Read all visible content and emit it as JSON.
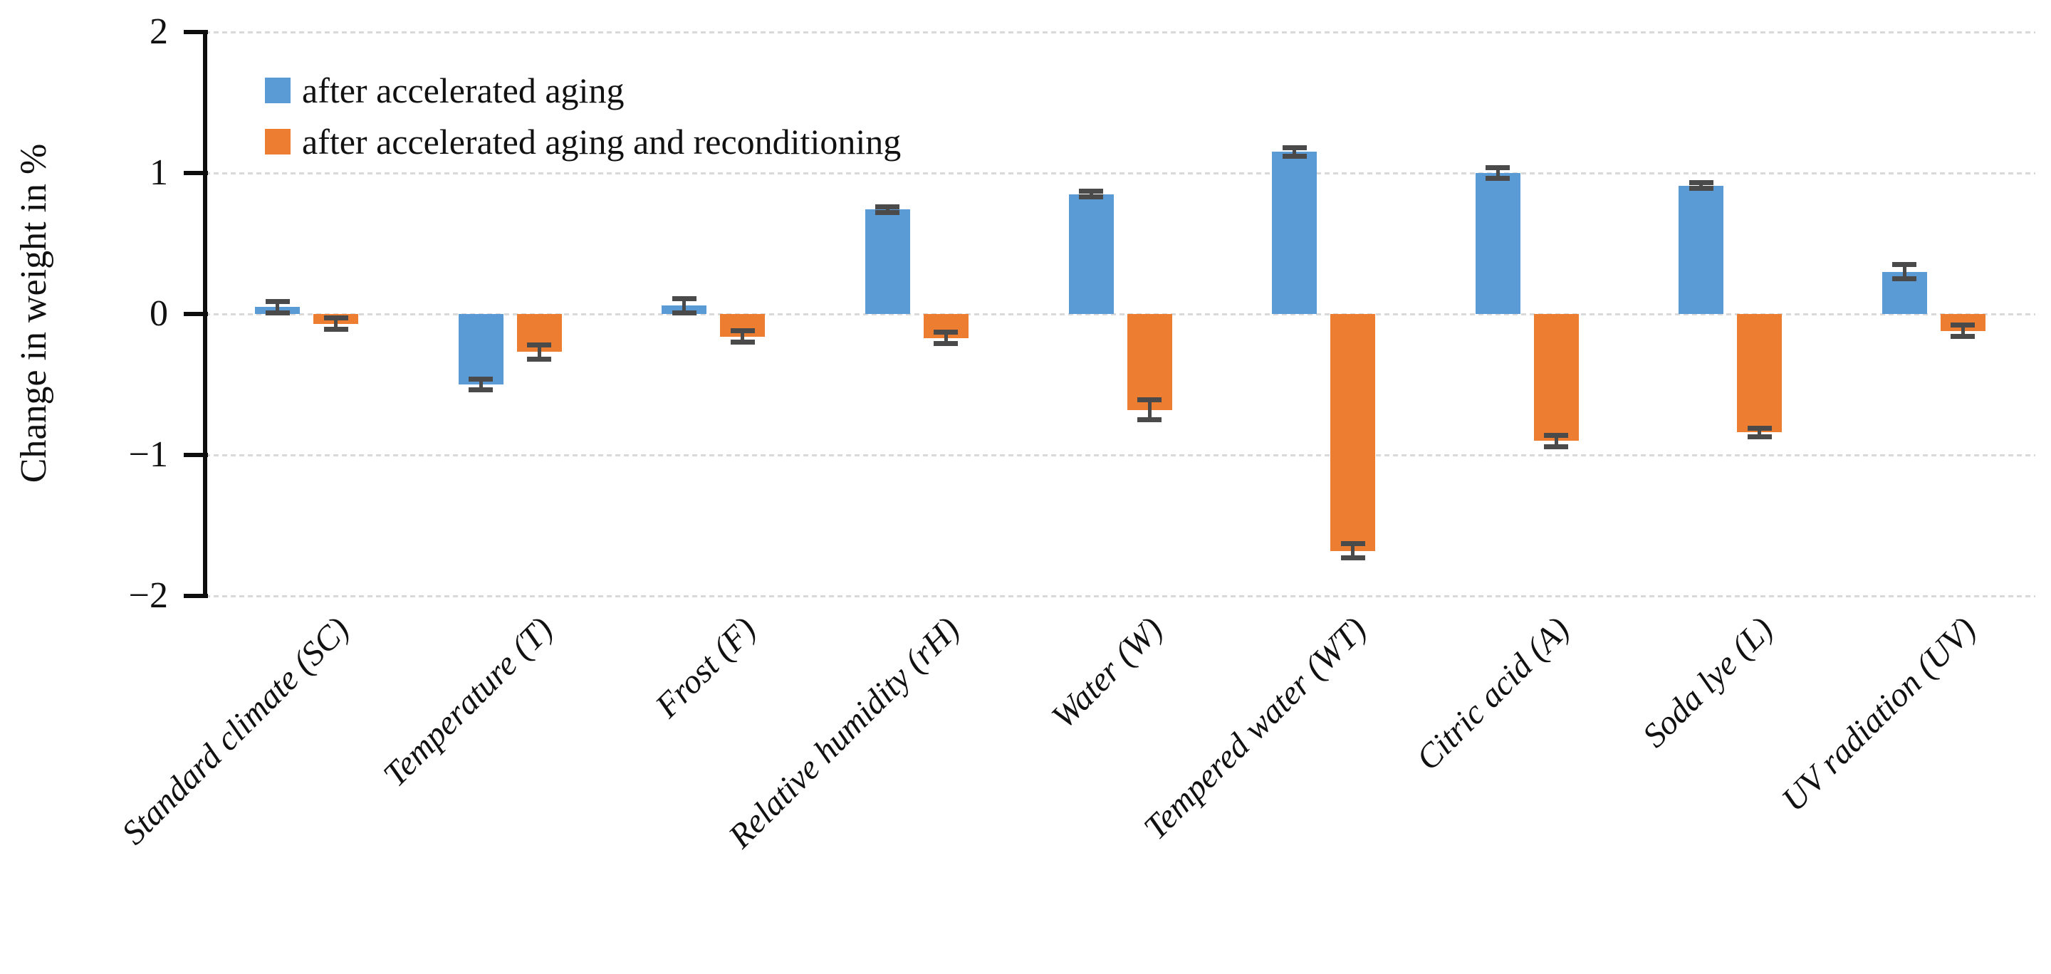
{
  "chart_data": {
    "type": "bar",
    "title": "",
    "ylabel": "Change in weight in %",
    "xlabel": "",
    "ylim": [
      -2,
      2
    ],
    "yticks": [
      2,
      1,
      0,
      -1,
      -2
    ],
    "ytick_labels": [
      "2",
      "1",
      "0",
      "−1",
      "−2"
    ],
    "grid": "horizontal-dotted",
    "legend_position": "top-left-inside",
    "gridline_color": "#d9d9d9",
    "axis_color": "#0d0d0d",
    "error_bar_color": "#4a4a4a",
    "categories": [
      "Standard climate (SC)",
      "Temperature (T)",
      "Frost (F)",
      "Relative humidity (rH)",
      "Water (W)",
      "Tempered water (WT)",
      "Citric acid (A)",
      "Soda lye (L)",
      "UV radiation (UV)"
    ],
    "series": [
      {
        "name": "after accelerated aging",
        "color": "#5B9BD5",
        "values": [
          0.05,
          -0.5,
          0.06,
          0.74,
          0.85,
          1.15,
          1.0,
          0.91,
          0.3
        ],
        "errors": [
          0.04,
          0.04,
          0.05,
          0.02,
          0.02,
          0.03,
          0.04,
          0.02,
          0.05
        ]
      },
      {
        "name": "after accelerated aging and reconditioning",
        "color": "#ED7D31",
        "values": [
          -0.07,
          -0.27,
          -0.16,
          -0.17,
          -0.68,
          -1.68,
          -0.9,
          -0.84,
          -0.12
        ],
        "errors": [
          0.04,
          0.05,
          0.04,
          0.04,
          0.07,
          0.05,
          0.04,
          0.03,
          0.04
        ]
      }
    ]
  }
}
